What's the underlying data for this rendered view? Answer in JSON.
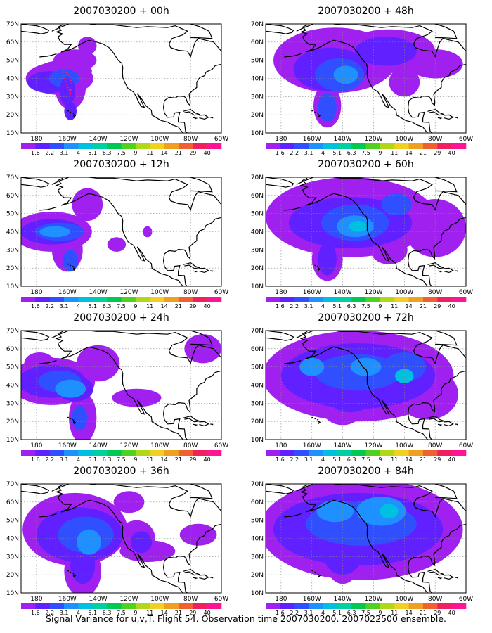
{
  "caption": "Signal Variance for u,v,T. Flight 54. Observation time 2007030200. 2007022500 ensemble.",
  "lat_labels": [
    "70N",
    "60N",
    "50N",
    "40N",
    "30N",
    "20N",
    "10N"
  ],
  "lon_labels": [
    "180",
    "160W",
    "140W",
    "120W",
    "100W",
    "80W",
    "60W"
  ],
  "colorbar_labels": [
    "1.6",
    "2.2",
    "3.1",
    "4",
    "5.1",
    "6.3",
    "7.5",
    "9",
    "11",
    "14",
    "21",
    "29",
    "40"
  ],
  "colorbar_colors": [
    "#a020f0",
    "#6020ff",
    "#3050ff",
    "#1e90ff",
    "#00c0e0",
    "#00d0a0",
    "#00c850",
    "#50d020",
    "#b0d818",
    "#f0d020",
    "#f0a020",
    "#f06030",
    "#f02060",
    "#ff1493"
  ],
  "panels": [
    {
      "title": "2007030200 + 00h",
      "level": 0
    },
    {
      "title": "2007030200 + 48h",
      "level": 4
    },
    {
      "title": "2007030200 + 12h",
      "level": 1
    },
    {
      "title": "2007030200 + 60h",
      "level": 5
    },
    {
      "title": "2007030200 + 24h",
      "level": 2
    },
    {
      "title": "2007030200 + 72h",
      "level": 6
    },
    {
      "title": "2007030200 + 36h",
      "level": 3
    },
    {
      "title": "2007030200 + 84h",
      "level": 7
    }
  ]
}
